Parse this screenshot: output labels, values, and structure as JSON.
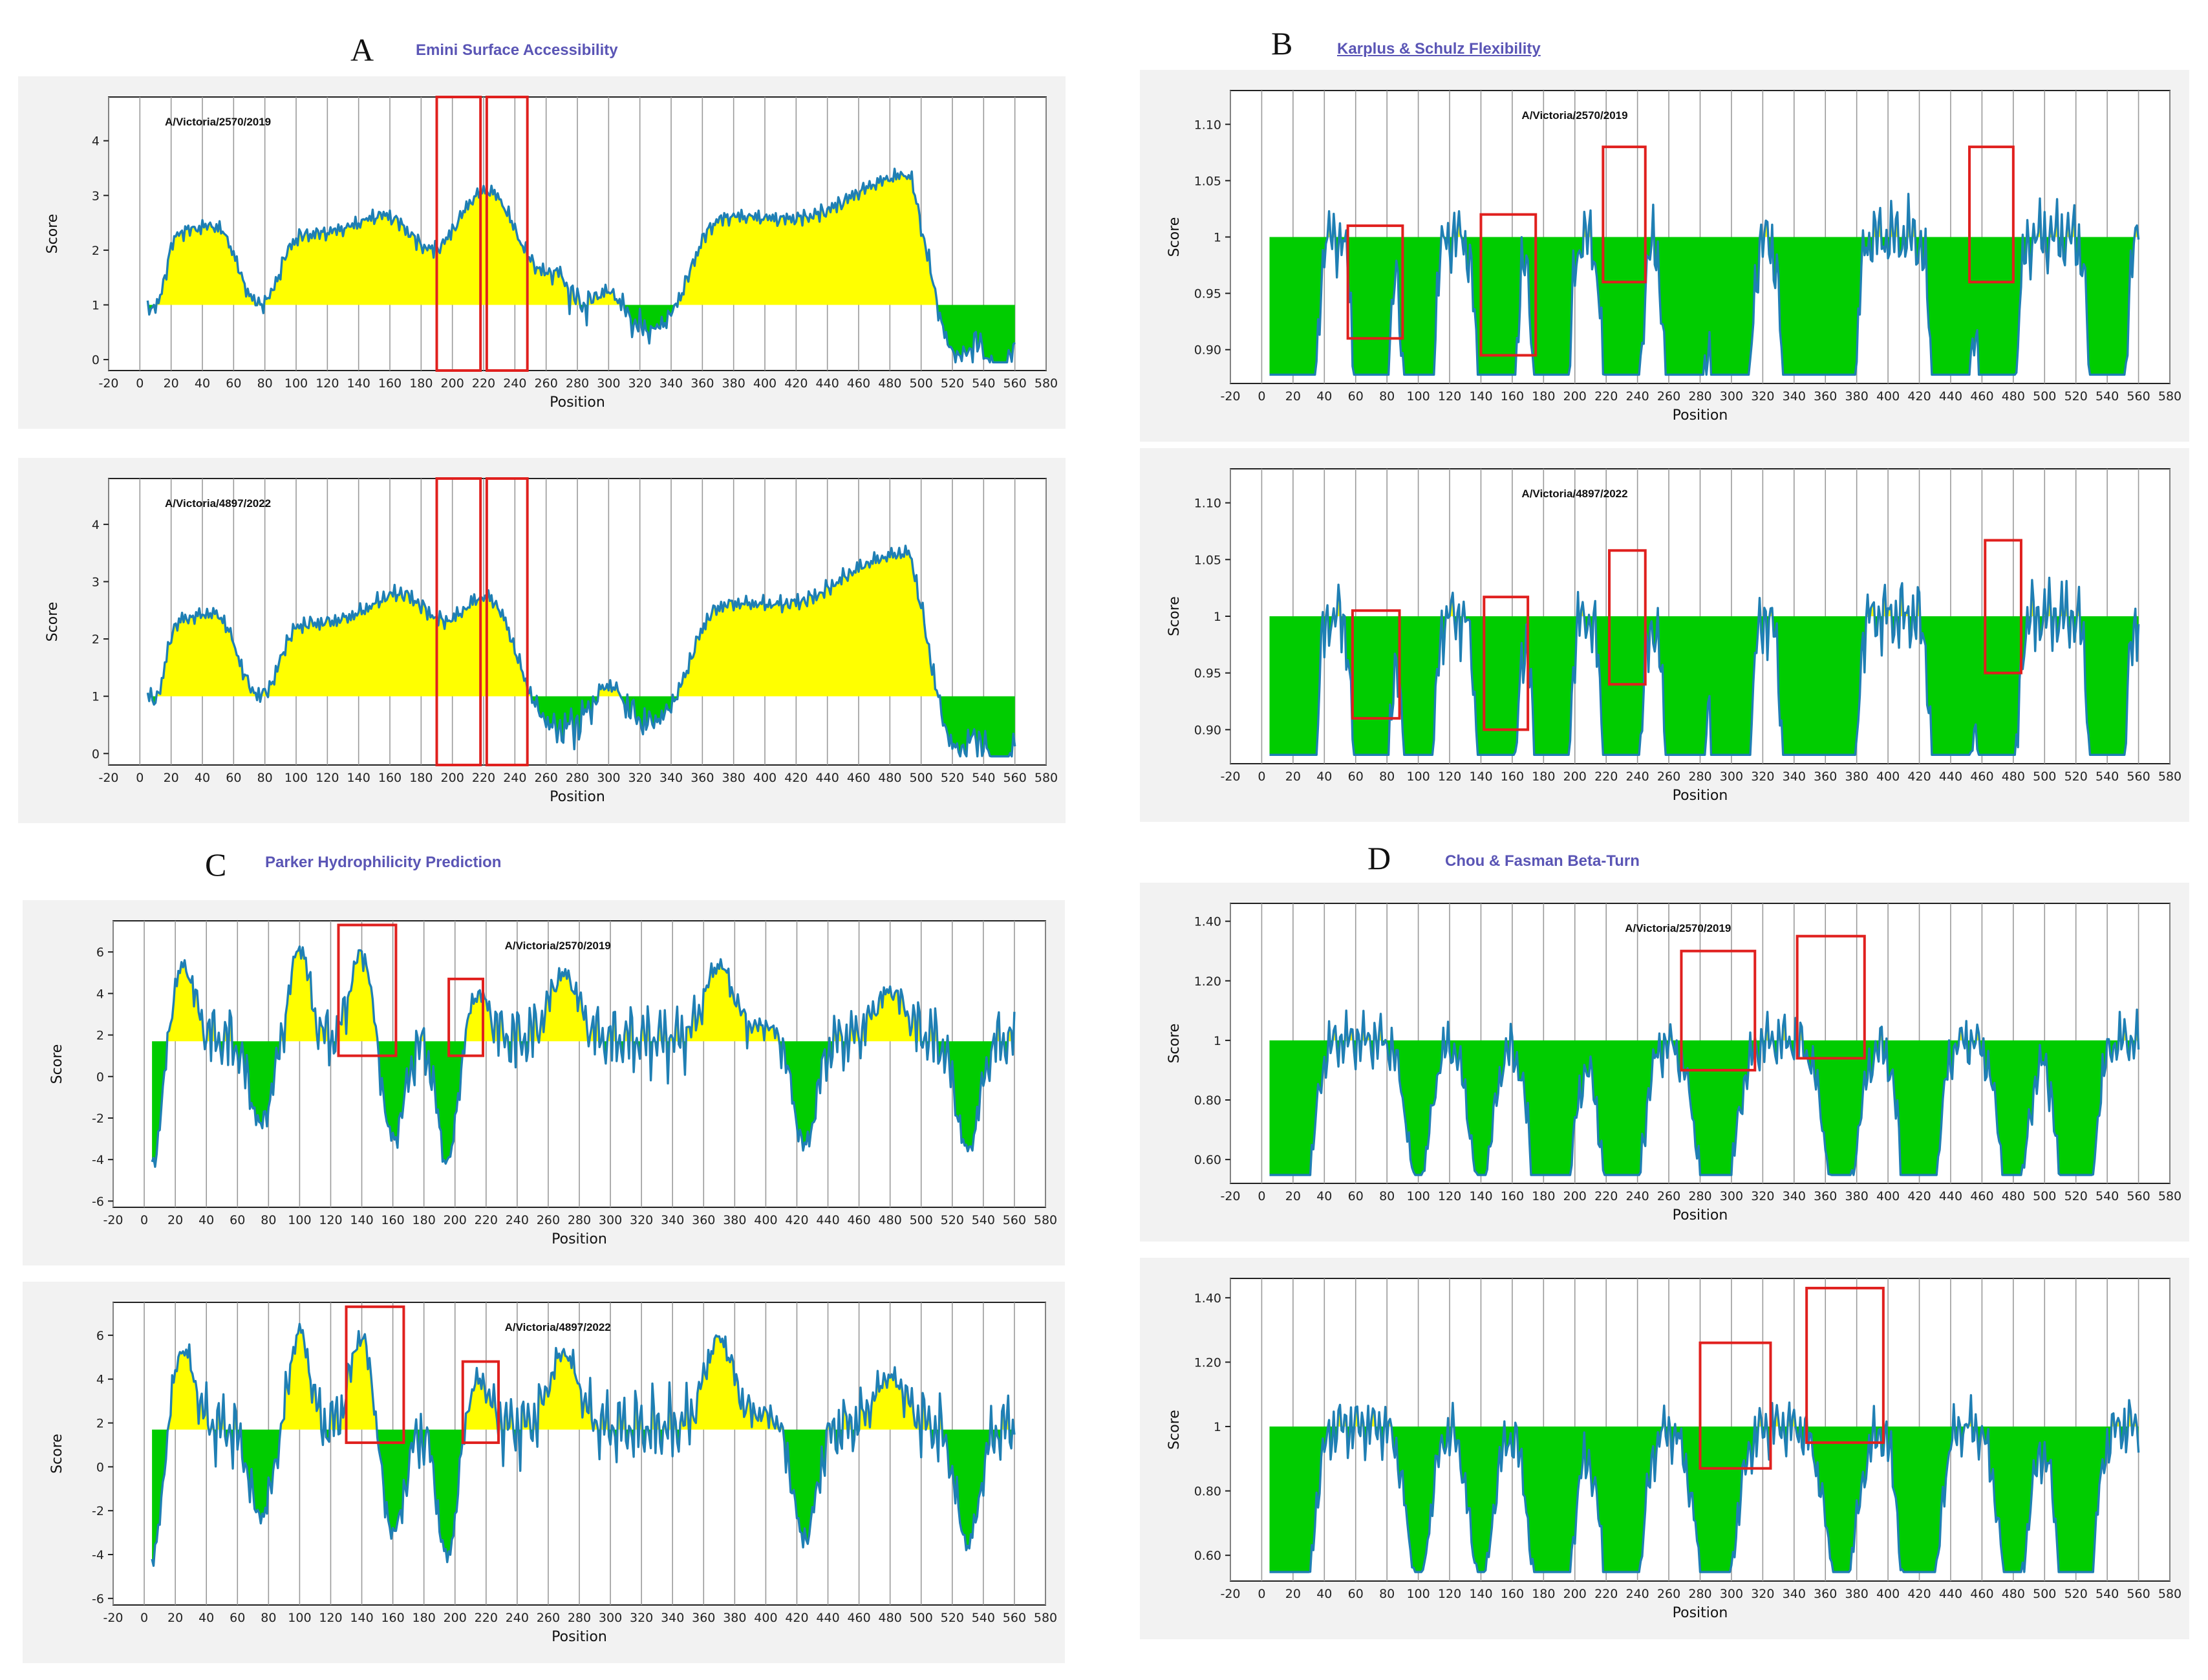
{
  "panels": [
    {
      "letter": "A",
      "title": "Emini Surface Accessibility"
    },
    {
      "letter": "B",
      "title": "Karplus & Schulz Flexibility"
    },
    {
      "letter": "C",
      "title": "Parker Hydrophilicity  Prediction"
    },
    {
      "letter": "D",
      "title": "Chou & Fasman Beta-Turn"
    }
  ],
  "chart_data": [
    {
      "id": "A1",
      "type": "area",
      "method": "Emini Surface Accessibility",
      "strain": "A/Victoria/2570/2019",
      "threshold": 1.0,
      "xlim": [
        -20,
        580
      ],
      "ylim": [
        -0.2,
        4.8
      ],
      "yticks": [
        0,
        1,
        2,
        3,
        4
      ],
      "xlabel": "Position",
      "ylabel": "Score",
      "x_start": 5,
      "x_end": 560,
      "baseline": 0.5,
      "amplitude": 0.55,
      "profile_peaks": [
        [
          10,
          0.1,
          -0.35
        ],
        [
          25,
          1.4,
          2.5
        ],
        [
          55,
          2.0,
          3.0
        ],
        [
          75,
          0.6,
          -0.4
        ],
        [
          115,
          1.5,
          2.5
        ],
        [
          135,
          1.6,
          2.7
        ],
        [
          170,
          2.0,
          3.5
        ],
        [
          185,
          1.0,
          2.2
        ],
        [
          200,
          1.2,
          -0.4
        ],
        [
          212,
          0.9,
          4.6
        ],
        [
          218,
          1.0,
          4.5
        ],
        [
          228,
          1.8,
          4.5
        ],
        [
          235,
          2.0,
          3.0
        ],
        [
          250,
          1.0,
          -0.4
        ],
        [
          300,
          0.5,
          1.3
        ],
        [
          340,
          0.8,
          -0.4
        ],
        [
          362,
          1.5,
          3.0
        ],
        [
          395,
          2.2,
          3.0
        ],
        [
          420,
          1.2,
          2.8
        ],
        [
          450,
          2.0,
          3.2
        ],
        [
          480,
          1.5,
          4.1
        ],
        [
          520,
          0.5,
          -0.4
        ],
        [
          550,
          0.3,
          -0.4
        ]
      ],
      "highlight_ranges": [
        [
          190,
          218
        ],
        [
          222,
          248
        ]
      ],
      "highlight_yranges": [
        [
          -0.2,
          4.8
        ],
        [
          -0.2,
          4.8
        ]
      ]
    },
    {
      "id": "A2",
      "type": "area",
      "method": "Emini Surface Accessibility",
      "strain": "A/Victoria/4897/2022",
      "threshold": 1.0,
      "xlim": [
        -20,
        580
      ],
      "ylim": [
        -0.2,
        4.8
      ],
      "yticks": [
        0,
        1,
        2,
        3,
        4
      ],
      "xlabel": "Position",
      "ylabel": "Score",
      "x_start": 5,
      "x_end": 560,
      "baseline": 0.5,
      "amplitude": 0.55,
      "profile_peaks": [
        [
          10,
          0.1,
          -0.35
        ],
        [
          25,
          1.4,
          2.5
        ],
        [
          55,
          2.0,
          3.0
        ],
        [
          75,
          0.6,
          -0.4
        ],
        [
          115,
          1.5,
          2.5
        ],
        [
          135,
          1.6,
          2.6
        ],
        [
          170,
          2.0,
          3.5
        ],
        [
          185,
          1.0,
          3.9
        ],
        [
          200,
          1.2,
          -0.4
        ],
        [
          212,
          1.0,
          4.6
        ],
        [
          220,
          1.2,
          3.9
        ],
        [
          228,
          1.5,
          3.0
        ],
        [
          250,
          1.0,
          -0.4
        ],
        [
          300,
          0.5,
          1.3
        ],
        [
          340,
          0.8,
          -0.4
        ],
        [
          362,
          1.5,
          3.0
        ],
        [
          395,
          2.2,
          3.0
        ],
        [
          420,
          1.2,
          2.8
        ],
        [
          450,
          2.0,
          3.5
        ],
        [
          480,
          1.5,
          4.2
        ],
        [
          520,
          0.5,
          -0.4
        ],
        [
          550,
          0.3,
          -0.4
        ]
      ],
      "highlight_ranges": [
        [
          190,
          218
        ],
        [
          222,
          248
        ]
      ],
      "highlight_yranges": [
        [
          -0.2,
          4.8
        ],
        [
          -0.2,
          4.8
        ]
      ]
    },
    {
      "id": "B1",
      "type": "area",
      "method": "Karplus & Schulz Flexibility",
      "strain": "A/Victoria/2570/2019",
      "threshold": 1.0,
      "xlim": [
        -20,
        580
      ],
      "ylim": [
        0.87,
        1.13
      ],
      "yticks": [
        0.9,
        0.95,
        1.0,
        1.05,
        1.1
      ],
      "xlabel": "Position",
      "ylabel": "Score",
      "x_start": 5,
      "x_end": 560,
      "baseline": 1.0,
      "amplitude": 0.035,
      "profile_peaks": [
        [
          5,
          0.15,
          -0.11
        ],
        [
          25,
          0.1,
          0.08
        ],
        [
          70,
          0.15,
          -0.08
        ],
        [
          100,
          0.1,
          0.12
        ],
        [
          150,
          0.2,
          -0.09
        ],
        [
          185,
          0.15,
          -0.07
        ],
        [
          230,
          0.2,
          0.06
        ],
        [
          270,
          0.2,
          -0.07
        ],
        [
          300,
          0.2,
          0.06
        ],
        [
          345,
          0.2,
          -0.07
        ],
        [
          370,
          0.1,
          0.125
        ],
        [
          440,
          0.2,
          -0.06
        ],
        [
          470,
          0.2,
          0.05
        ],
        [
          540,
          0.15,
          -0.13
        ]
      ],
      "highlight_ranges": [
        [
          55,
          90
        ],
        [
          140,
          175
        ],
        [
          218,
          245
        ],
        [
          452,
          480
        ]
      ],
      "highlight_yranges": [
        [
          0.91,
          1.01
        ],
        [
          0.895,
          1.02
        ],
        [
          0.96,
          1.08
        ],
        [
          0.96,
          1.08
        ]
      ]
    },
    {
      "id": "B2",
      "type": "area",
      "method": "Karplus & Schulz Flexibility",
      "strain": "A/Victoria/4897/2022",
      "threshold": 1.0,
      "xlim": [
        -20,
        580
      ],
      "ylim": [
        0.87,
        1.13
      ],
      "yticks": [
        0.9,
        0.95,
        1.0,
        1.05,
        1.1
      ],
      "xlabel": "Position",
      "ylabel": "Score",
      "x_start": 5,
      "x_end": 560,
      "baseline": 1.0,
      "amplitude": 0.035,
      "profile_peaks": [
        [
          5,
          0.15,
          -0.11
        ],
        [
          25,
          0.1,
          0.08
        ],
        [
          70,
          0.15,
          -0.08
        ],
        [
          100,
          0.1,
          0.12
        ],
        [
          150,
          0.2,
          -0.09
        ],
        [
          185,
          0.15,
          -0.07
        ],
        [
          230,
          0.2,
          0.06
        ],
        [
          270,
          0.2,
          -0.07
        ],
        [
          300,
          0.2,
          0.06
        ],
        [
          345,
          0.2,
          -0.07
        ],
        [
          370,
          0.1,
          0.115
        ],
        [
          440,
          0.2,
          -0.06
        ],
        [
          470,
          0.2,
          0.05
        ],
        [
          540,
          0.15,
          -0.13
        ]
      ],
      "highlight_ranges": [
        [
          58,
          88
        ],
        [
          142,
          170
        ],
        [
          222,
          245
        ],
        [
          462,
          485
        ]
      ],
      "highlight_yranges": [
        [
          0.91,
          1.005
        ],
        [
          0.9,
          1.017
        ],
        [
          0.94,
          1.058
        ],
        [
          0.95,
          1.067
        ]
      ]
    },
    {
      "id": "C1",
      "type": "area",
      "method": "Parker Hydrophilicity  Prediction",
      "strain": "A/Victoria/2570/2019",
      "threshold": 1.7,
      "xlim": [
        -20,
        580
      ],
      "ylim": [
        -6.3,
        7.5
      ],
      "yticks": [
        -6,
        -4,
        -2,
        0,
        2,
        4,
        6
      ],
      "xlabel": "Position",
      "ylabel": "Score",
      "x_start": 5,
      "x_end": 560,
      "baseline": 1.8,
      "amplitude": 1.8,
      "profile_peaks": [
        [
          5,
          0.2,
          -5.5
        ],
        [
          25,
          0.3,
          6.0
        ],
        [
          75,
          0.3,
          -3.0
        ],
        [
          100,
          0.2,
          7.0
        ],
        [
          140,
          0.3,
          6.8
        ],
        [
          160,
          0.3,
          -4.0
        ],
        [
          195,
          0.2,
          -5.3
        ],
        [
          215,
          0.3,
          4.4
        ],
        [
          270,
          0.5,
          5.5
        ],
        [
          370,
          0.5,
          6.0
        ],
        [
          400,
          0.5,
          2.5
        ],
        [
          425,
          0.3,
          -4.3
        ],
        [
          480,
          0.6,
          4.5
        ],
        [
          530,
          0.3,
          -4.5
        ]
      ],
      "highlight_ranges": [
        [
          125,
          162
        ],
        [
          196,
          218
        ]
      ],
      "highlight_yranges": [
        [
          1.0,
          7.3
        ],
        [
          1.0,
          4.7
        ]
      ]
    },
    {
      "id": "C2",
      "type": "area",
      "method": "Parker Hydrophilicity  Prediction",
      "strain": "A/Victoria/4897/2022",
      "threshold": 1.7,
      "xlim": [
        -20,
        580
      ],
      "ylim": [
        -6.3,
        7.5
      ],
      "yticks": [
        -6,
        -4,
        -2,
        0,
        2,
        4,
        6
      ],
      "xlabel": "Position",
      "ylabel": "Score",
      "x_start": 5,
      "x_end": 560,
      "baseline": 1.8,
      "amplitude": 1.8,
      "profile_peaks": [
        [
          5,
          0.2,
          -5.5
        ],
        [
          25,
          0.3,
          6.0
        ],
        [
          75,
          0.3,
          -3.0
        ],
        [
          100,
          0.2,
          7.0
        ],
        [
          140,
          0.3,
          6.8
        ],
        [
          160,
          0.3,
          -4.0
        ],
        [
          195,
          0.2,
          -5.3
        ],
        [
          215,
          0.3,
          4.4
        ],
        [
          270,
          0.5,
          5.8
        ],
        [
          370,
          0.5,
          6.6
        ],
        [
          400,
          0.5,
          2.5
        ],
        [
          425,
          0.3,
          -4.3
        ],
        [
          480,
          0.6,
          4.5
        ],
        [
          530,
          0.3,
          -4.5
        ]
      ],
      "highlight_ranges": [
        [
          130,
          167
        ],
        [
          205,
          228
        ]
      ],
      "highlight_yranges": [
        [
          1.1,
          7.3
        ],
        [
          1.1,
          4.8
        ]
      ]
    },
    {
      "id": "D1",
      "type": "area",
      "method": "Chou & Fasman Beta-Turn",
      "strain": "A/Victoria/2570/2019",
      "threshold": 1.0,
      "xlim": [
        -20,
        580
      ],
      "ylim": [
        0.52,
        1.46
      ],
      "yticks": [
        0.6,
        0.8,
        1.0,
        1.2,
        1.4
      ],
      "xlabel": "Position",
      "ylabel": "Score",
      "x_start": 5,
      "x_end": 560,
      "baseline": 1.0,
      "amplitude": 0.1,
      "profile_peaks": [
        [
          5,
          0.2,
          -0.45
        ],
        [
          25,
          0.3,
          0.25
        ],
        [
          100,
          0.3,
          0.42
        ],
        [
          140,
          0.3,
          0.42
        ],
        [
          185,
          0.5,
          -0.3
        ],
        [
          230,
          0.5,
          -0.2
        ],
        [
          290,
          0.6,
          0.15
        ],
        [
          370,
          0.5,
          0.25
        ],
        [
          420,
          0.4,
          -0.4
        ],
        [
          480,
          0.4,
          0.3
        ],
        [
          520,
          0.4,
          -0.3
        ]
      ],
      "highlight_ranges": [
        [
          268,
          315
        ],
        [
          342,
          385
        ]
      ],
      "highlight_yranges": [
        [
          0.9,
          1.3
        ],
        [
          0.94,
          1.35
        ]
      ]
    },
    {
      "id": "D2",
      "type": "area",
      "method": "Chou & Fasman Beta-Turn",
      "strain": "",
      "threshold": 1.0,
      "xlim": [
        -20,
        580
      ],
      "ylim": [
        0.52,
        1.46
      ],
      "yticks": [
        0.6,
        0.8,
        1.0,
        1.2,
        1.4
      ],
      "xlabel": "Position",
      "ylabel": "Score",
      "x_start": 5,
      "x_end": 560,
      "baseline": 1.0,
      "amplitude": 0.1,
      "profile_peaks": [
        [
          5,
          0.2,
          -0.45
        ],
        [
          25,
          0.3,
          0.25
        ],
        [
          100,
          0.3,
          0.42
        ],
        [
          140,
          0.3,
          0.42
        ],
        [
          185,
          0.5,
          -0.3
        ],
        [
          230,
          0.5,
          -0.2
        ],
        [
          290,
          0.6,
          0.15
        ],
        [
          370,
          0.5,
          0.38
        ],
        [
          420,
          0.4,
          -0.4
        ],
        [
          480,
          0.4,
          0.3
        ],
        [
          520,
          0.4,
          -0.3
        ]
      ],
      "highlight_ranges": [
        [
          280,
          325
        ],
        [
          348,
          397
        ]
      ],
      "highlight_yranges": [
        [
          0.87,
          1.26
        ],
        [
          0.95,
          1.43
        ]
      ]
    }
  ]
}
